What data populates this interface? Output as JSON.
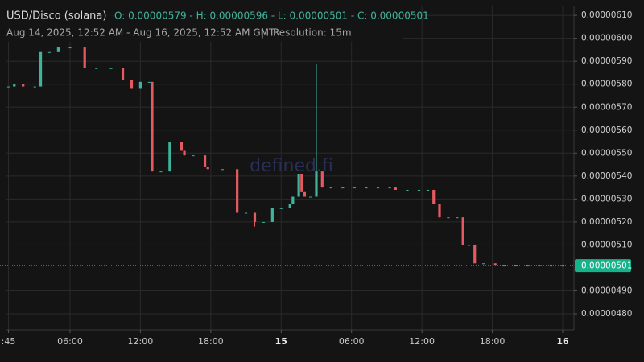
{
  "chart_data": {
    "type": "candlestick",
    "title": "USD/Disco (solana)",
    "ohlc_text": "O: 0.00000579 - H: 0.00000596 - L: 0.00000501 - C: 0.00000501",
    "subtitle": "Aug 14, 2025, 12:52 AM - Aug 16, 2025, 12:52 AM GMT",
    "separator": "|",
    "resolution": "Resolution: 15m",
    "watermark": "defined.fi",
    "up_color": "#3fb39c",
    "down_color": "#e55a60",
    "grid": true,
    "xlim": [
      0.58,
      48.96
    ],
    "ylim": [
      4.73e-06,
      6.139e-06
    ],
    "xticks": [
      {
        "value": 0.75,
        "label": ":45"
      },
      {
        "value": 6,
        "label": "06:00"
      },
      {
        "value": 12,
        "label": "12:00"
      },
      {
        "value": 18,
        "label": "18:00"
      },
      {
        "value": 24,
        "label": "15"
      },
      {
        "value": 30,
        "label": "06:00"
      },
      {
        "value": 36,
        "label": "12:00"
      },
      {
        "value": 42,
        "label": "18:00"
      },
      {
        "value": 48,
        "label": "16"
      }
    ],
    "yticks": [
      {
        "value": 6.1e-06,
        "label": "0.00000610"
      },
      {
        "value": 6e-06,
        "label": "0.00000600"
      },
      {
        "value": 5.9e-06,
        "label": "0.00000590"
      },
      {
        "value": 5.8e-06,
        "label": "0.00000580"
      },
      {
        "value": 5.7e-06,
        "label": "0.00000570"
      },
      {
        "value": 5.6e-06,
        "label": "0.00000560"
      },
      {
        "value": 5.5e-06,
        "label": "0.00000550"
      },
      {
        "value": 5.4e-06,
        "label": "0.00000540"
      },
      {
        "value": 5.3e-06,
        "label": "0.00000530"
      },
      {
        "value": 5.2e-06,
        "label": "0.00000520"
      },
      {
        "value": 5.1e-06,
        "label": "0.00000510"
      },
      {
        "value": 4.9e-06,
        "label": "0.00000490"
      },
      {
        "value": 4.8e-06,
        "label": "0.00000480"
      }
    ],
    "last_price": {
      "value": 5.01e-06,
      "label": "0.00000501"
    },
    "x": [
      0.75,
      1.25,
      2,
      3,
      3.5,
      4.25,
      5,
      6,
      7.25,
      8.25,
      9.5,
      10.5,
      11.25,
      12,
      12.75,
      13,
      13.75,
      14.5,
      15,
      15.5,
      15.75,
      16.5,
      17.5,
      17.75,
      19,
      20.25,
      21,
      21.75,
      22.5,
      23.25,
      24,
      24.75,
      25,
      25.5,
      25.75,
      26,
      26.5,
      27,
      27.5,
      28.25,
      29.25,
      30.25,
      31.25,
      32.25,
      33.25,
      33.75,
      34.75,
      35.75,
      36.5,
      37,
      37.5,
      38.25,
      39,
      39.5,
      40,
      40.5,
      41.25,
      42.25,
      43,
      44,
      45,
      46,
      47,
      48
    ],
    "open": [
      5.79e-06,
      5.79e-06,
      5.8e-06,
      5.79e-06,
      5.79e-06,
      5.94e-06,
      5.94e-06,
      5.96e-06,
      5.96e-06,
      5.87e-06,
      5.87e-06,
      5.87e-06,
      5.82e-06,
      5.78e-06,
      5.81e-06,
      5.81e-06,
      5.42e-06,
      5.42e-06,
      5.55e-06,
      5.55e-06,
      5.51e-06,
      5.49e-06,
      5.49e-06,
      5.44e-06,
      5.43e-06,
      5.43e-06,
      5.24e-06,
      5.24e-06,
      5.2e-06,
      5.2e-06,
      5.26e-06,
      5.26e-06,
      5.28e-06,
      5.31e-06,
      5.41e-06,
      5.33e-06,
      5.31e-06,
      5.31e-06,
      5.42e-06,
      5.35e-06,
      5.35e-06,
      5.35e-06,
      5.35e-06,
      5.35e-06,
      5.35e-06,
      5.35e-06,
      5.34e-06,
      5.34e-06,
      5.34e-06,
      5.34e-06,
      5.28e-06,
      5.22e-06,
      5.22e-06,
      5.22e-06,
      5.1e-06,
      5.1e-06,
      5.02e-06,
      5.02e-06,
      5.01e-06,
      5.01e-06,
      5.01e-06,
      5.01e-06,
      5.01e-06,
      5.01e-06
    ],
    "high": [
      5.79e-06,
      5.8e-06,
      5.8e-06,
      5.79e-06,
      5.94e-06,
      5.94e-06,
      5.96e-06,
      5.96e-06,
      5.96e-06,
      5.87e-06,
      5.87e-06,
      5.87e-06,
      5.82e-06,
      5.81e-06,
      5.81e-06,
      5.81e-06,
      5.42e-06,
      5.55e-06,
      5.55e-06,
      5.55e-06,
      5.51e-06,
      5.49e-06,
      5.49e-06,
      5.44e-06,
      5.43e-06,
      5.43e-06,
      5.24e-06,
      5.24e-06,
      5.2e-06,
      5.26e-06,
      5.26e-06,
      5.28e-06,
      5.31e-06,
      5.41e-06,
      5.41e-06,
      5.33e-06,
      5.31e-06,
      5.89e-06,
      5.42e-06,
      5.35e-06,
      5.35e-06,
      5.35e-06,
      5.35e-06,
      5.35e-06,
      5.35e-06,
      5.35e-06,
      5.34e-06,
      5.34e-06,
      5.34e-06,
      5.34e-06,
      5.28e-06,
      5.22e-06,
      5.22e-06,
      5.22e-06,
      5.1e-06,
      5.1e-06,
      5.02e-06,
      5.02e-06,
      5.01e-06,
      5.01e-06,
      5.01e-06,
      5.01e-06,
      5.01e-06,
      5.01e-06
    ],
    "low": [
      5.79e-06,
      5.79e-06,
      5.79e-06,
      5.79e-06,
      5.79e-06,
      5.94e-06,
      5.94e-06,
      5.96e-06,
      5.87e-06,
      5.87e-06,
      5.87e-06,
      5.82e-06,
      5.78e-06,
      5.78e-06,
      5.81e-06,
      5.42e-06,
      5.42e-06,
      5.42e-06,
      5.55e-06,
      5.51e-06,
      5.49e-06,
      5.49e-06,
      5.44e-06,
      5.43e-06,
      5.43e-06,
      5.24e-06,
      5.24e-06,
      5.18e-06,
      5.2e-06,
      5.2e-06,
      5.26e-06,
      5.26e-06,
      5.28e-06,
      5.31e-06,
      5.33e-06,
      5.31e-06,
      5.31e-06,
      5.31e-06,
      5.35e-06,
      5.35e-06,
      5.35e-06,
      5.35e-06,
      5.35e-06,
      5.35e-06,
      5.35e-06,
      5.34e-06,
      5.34e-06,
      5.34e-06,
      5.34e-06,
      5.28e-06,
      5.22e-06,
      5.22e-06,
      5.22e-06,
      5.1e-06,
      5.1e-06,
      5.02e-06,
      5.02e-06,
      5.01e-06,
      5.01e-06,
      5.01e-06,
      5.01e-06,
      5.01e-06,
      5.01e-06,
      5.01e-06
    ],
    "close": [
      5.79e-06,
      5.8e-06,
      5.79e-06,
      5.79e-06,
      5.94e-06,
      5.94e-06,
      5.96e-06,
      5.96e-06,
      5.87e-06,
      5.87e-06,
      5.87e-06,
      5.82e-06,
      5.78e-06,
      5.81e-06,
      5.81e-06,
      5.42e-06,
      5.42e-06,
      5.55e-06,
      5.55e-06,
      5.51e-06,
      5.49e-06,
      5.49e-06,
      5.44e-06,
      5.43e-06,
      5.43e-06,
      5.24e-06,
      5.24e-06,
      5.2e-06,
      5.2e-06,
      5.26e-06,
      5.26e-06,
      5.28e-06,
      5.31e-06,
      5.41e-06,
      5.33e-06,
      5.31e-06,
      5.31e-06,
      5.42e-06,
      5.35e-06,
      5.35e-06,
      5.35e-06,
      5.35e-06,
      5.35e-06,
      5.35e-06,
      5.35e-06,
      5.34e-06,
      5.34e-06,
      5.34e-06,
      5.34e-06,
      5.28e-06,
      5.22e-06,
      5.22e-06,
      5.22e-06,
      5.1e-06,
      5.1e-06,
      5.02e-06,
      5.02e-06,
      5.01e-06,
      5.01e-06,
      5.01e-06,
      5.01e-06,
      5.01e-06,
      5.01e-06,
      5.01e-06
    ]
  }
}
